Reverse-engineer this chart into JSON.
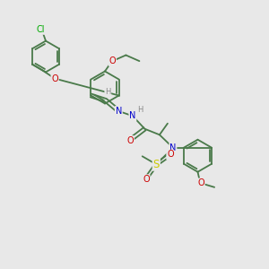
{
  "background_color": "#e8e8e8",
  "atom_colors": {
    "C": "#4a7a4a",
    "H": "#888888",
    "N": "#0000cc",
    "O": "#cc0000",
    "S": "#cccc00",
    "Cl": "#00aa00"
  },
  "bond_color": "#4a7a4a",
  "figsize": [
    3.0,
    3.0
  ],
  "dpi": 100
}
